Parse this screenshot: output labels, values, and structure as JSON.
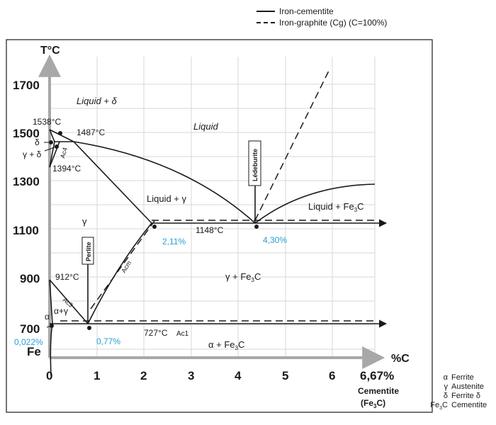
{
  "legend": {
    "solid_label": "Iron-cementite",
    "dashed_label": "Iron-graphite (Cg) (C=100%)"
  },
  "axes": {
    "y_title": "T°C",
    "x_title": "%C",
    "y_ticks": [
      "1700",
      "1500",
      "1300",
      "1100",
      "900",
      "700"
    ],
    "y_bottom_label": "Fe",
    "x_ticks": [
      "0",
      "1",
      "2",
      "3",
      "4",
      "5",
      "6"
    ],
    "x_end_tick": "6,67%",
    "x_end_label_1": "Cementite",
    "x_end_label_2": "(Fe",
    "x_end_label_2_sub": "3",
    "x_end_label_2_tail": "C)"
  },
  "points": {
    "t1538": "1538°C",
    "t1487": "1487°C",
    "t1394": "1394°C",
    "t1148": "1148°C",
    "t912": "912°C",
    "t727": "727°C",
    "c211": "2,11%",
    "c430": "4,30%",
    "c077": "0,77%",
    "c0022": "0,022%"
  },
  "regions": {
    "liquid": "Liquid",
    "liquid_delta": "Liquid + δ",
    "delta": "δ",
    "gamma_delta": "γ + δ",
    "liquid_gamma": "Liquid + γ",
    "liquid_fe3c": "Liquid + Fe",
    "liquid_fe3c_sub": "3",
    "liquid_fe3c_tail": "C",
    "gamma": "γ",
    "gamma_fe3c": "γ + Fe",
    "gamma_fe3c_sub": "3",
    "gamma_fe3c_tail": "C",
    "alpha": "α",
    "alpha_gamma": "α+γ",
    "alpha_fe3c": "α + Fe",
    "alpha_fe3c_sub": "3",
    "alpha_fe3c_tail": "C"
  },
  "line_labels": {
    "ac4": "Ac4",
    "ac3": "Ac3",
    "acm": "Acm",
    "ac1": "Ac1",
    "perlite": "Perlite",
    "ledeburite": "Lédeburite"
  },
  "key": [
    {
      "symbol": "α",
      "name": "Ferrite"
    },
    {
      "symbol": "γ",
      "name": "Austenite"
    },
    {
      "symbol": "δ",
      "name": "Ferrite δ"
    },
    {
      "symbol": "Fe",
      "symbol_sub": "3",
      "symbol_tail": "C",
      "name": "Cementite"
    }
  ],
  "colors": {
    "ink": "#1a1a1a",
    "grid": "#d7d7d7",
    "axis": "#a8a8a8",
    "accent": "#2a9fd6"
  }
}
